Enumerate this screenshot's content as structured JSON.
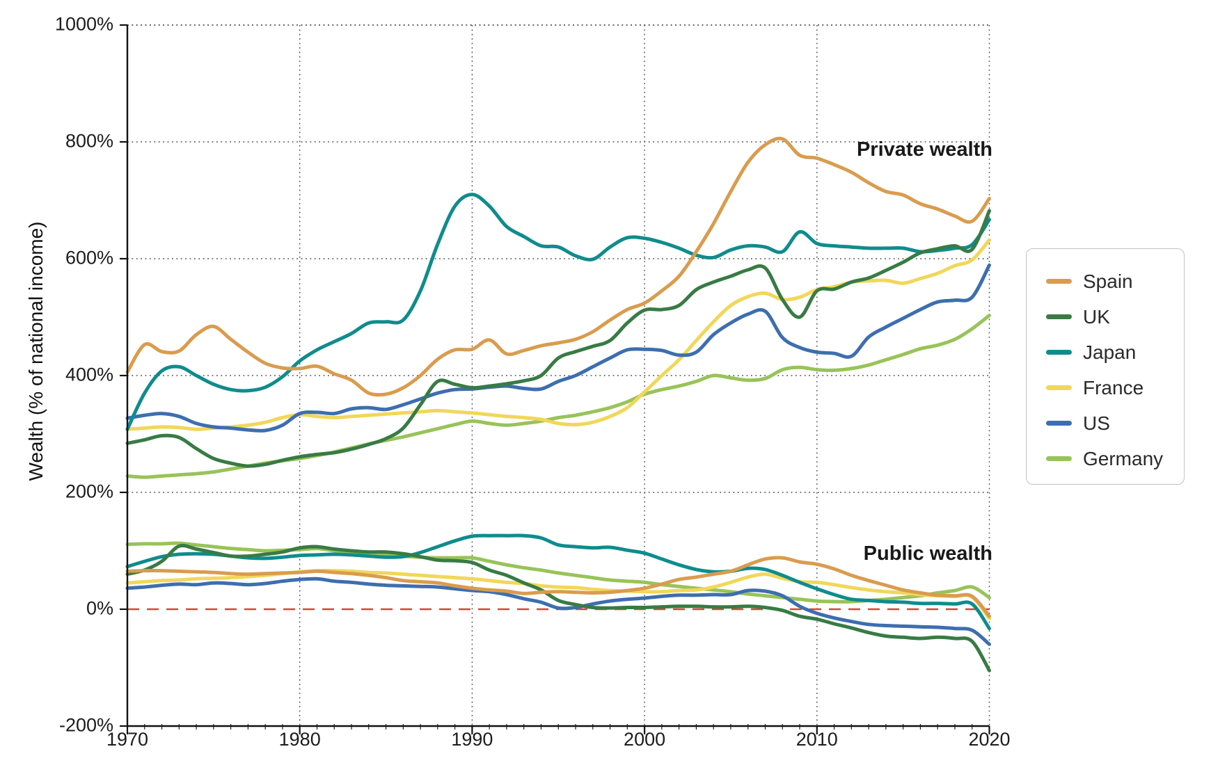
{
  "chart_data": {
    "type": "line",
    "title": "",
    "ylabel": "Wealth (% of national income)",
    "xlabel": "",
    "xlim": [
      1970,
      2020
    ],
    "ylim": [
      -200,
      1000
    ],
    "grid": "dotted",
    "legend_position": "right",
    "annotations": {
      "private": "Private wealth",
      "public": "Public wealth"
    },
    "zero_line": {
      "value": 0,
      "color": "#D9453F",
      "style": "dashed"
    },
    "x_ticks": [
      1970,
      1980,
      1990,
      2000,
      2010,
      2020
    ],
    "x_gridlines": [
      1980,
      1990,
      2000,
      2010,
      2020
    ],
    "y_gridlines": [
      1000,
      800,
      600,
      400,
      200
    ],
    "y_ticks": [
      {
        "value": 1000,
        "label": "1000%"
      },
      {
        "value": 800,
        "label": "800%"
      },
      {
        "value": 600,
        "label": "600%"
      },
      {
        "value": 400,
        "label": "400%"
      },
      {
        "value": 200,
        "label": "200%"
      },
      {
        "value": 0,
        "label": "0%"
      },
      {
        "value": -200,
        "label": "-200%"
      }
    ],
    "years": [
      1970,
      1971,
      1972,
      1973,
      1974,
      1975,
      1976,
      1977,
      1978,
      1979,
      1980,
      1981,
      1982,
      1983,
      1984,
      1985,
      1986,
      1987,
      1988,
      1989,
      1990,
      1991,
      1992,
      1993,
      1994,
      1995,
      1996,
      1997,
      1998,
      1999,
      2000,
      2001,
      2002,
      2003,
      2004,
      2005,
      2006,
      2007,
      2008,
      2009,
      2010,
      2011,
      2012,
      2013,
      2014,
      2015,
      2016,
      2017,
      2018,
      2019,
      2020
    ],
    "series": [
      {
        "name": "Spain",
        "color": "#D99C4E",
        "private": [
          406,
          453,
          441,
          442,
          470,
          484,
          462,
          440,
          421,
          413,
          412,
          416,
          403,
          392,
          370,
          368,
          379,
          400,
          428,
          444,
          445,
          461,
          437,
          443,
          451,
          456,
          462,
          475,
          495,
          513,
          524,
          545,
          570,
          612,
          660,
          715,
          765,
          795,
          805,
          777,
          772,
          761,
          748,
          730,
          715,
          709,
          694,
          685,
          673,
          664,
          703
        ],
        "public": [
          65,
          66,
          66,
          65,
          64,
          63,
          61,
          60,
          61,
          62,
          63,
          65,
          63,
          61,
          58,
          54,
          49,
          47,
          45,
          40,
          36,
          33,
          31,
          27,
          29,
          30,
          29,
          28,
          29,
          32,
          36,
          43,
          51,
          55,
          60,
          65,
          76,
          86,
          88,
          81,
          77,
          69,
          58,
          49,
          41,
          33,
          28,
          24,
          23,
          22,
          -12
        ]
      },
      {
        "name": "UK",
        "color": "#387B44",
        "private": [
          284,
          290,
          297,
          294,
          275,
          258,
          250,
          245,
          248,
          255,
          261,
          265,
          268,
          274,
          282,
          292,
          310,
          350,
          390,
          385,
          379,
          382,
          386,
          391,
          400,
          430,
          441,
          450,
          460,
          490,
          512,
          513,
          520,
          547,
          560,
          570,
          581,
          584,
          530,
          500,
          545,
          548,
          560,
          567,
          580,
          594,
          610,
          617,
          622,
          616,
          682
        ],
        "public": [
          60,
          67,
          82,
          108,
          103,
          97,
          91,
          91,
          94,
          98,
          105,
          107,
          103,
          100,
          98,
          98,
          95,
          90,
          84,
          83,
          80,
          67,
          58,
          45,
          33,
          15,
          8,
          3,
          2,
          3,
          3,
          4,
          5,
          5,
          4,
          4,
          5,
          3,
          -2,
          -12,
          -17,
          -25,
          -32,
          -40,
          -46,
          -48,
          -50,
          -48,
          -50,
          -55,
          -105
        ]
      },
      {
        "name": "Japan",
        "color": "#0F8C8D",
        "private": [
          308,
          370,
          408,
          415,
          400,
          385,
          376,
          374,
          380,
          398,
          425,
          444,
          458,
          472,
          490,
          492,
          495,
          545,
          625,
          690,
          710,
          690,
          655,
          638,
          622,
          620,
          605,
          599,
          620,
          636,
          635,
          628,
          618,
          606,
          602,
          615,
          622,
          620,
          612,
          646,
          626,
          622,
          620,
          618,
          618,
          618,
          612,
          614,
          618,
          624,
          667
        ],
        "public": [
          73,
          82,
          90,
          94,
          95,
          94,
          91,
          88,
          87,
          89,
          92,
          93,
          94,
          93,
          91,
          89,
          90,
          97,
          107,
          117,
          125,
          126,
          126,
          126,
          122,
          110,
          107,
          105,
          106,
          101,
          96,
          86,
          76,
          68,
          64,
          65,
          70,
          68,
          58,
          46,
          35,
          25,
          17,
          15,
          13,
          12,
          10,
          10,
          9,
          9,
          -33
        ]
      },
      {
        "name": "France",
        "color": "#F1D75A",
        "private": [
          308,
          310,
          312,
          311,
          308,
          310,
          312,
          315,
          320,
          328,
          333,
          330,
          328,
          330,
          332,
          334,
          336,
          338,
          340,
          338,
          336,
          333,
          330,
          328,
          325,
          318,
          316,
          320,
          330,
          345,
          372,
          400,
          427,
          460,
          492,
          520,
          535,
          541,
          530,
          534,
          547,
          552,
          560,
          562,
          563,
          558,
          566,
          575,
          588,
          598,
          632
        ],
        "public": [
          45,
          47,
          49,
          50,
          52,
          53,
          54,
          56,
          58,
          61,
          64,
          66,
          66,
          65,
          63,
          62,
          60,
          58,
          56,
          54,
          52,
          49,
          46,
          44,
          40,
          38,
          37,
          34,
          32,
          31,
          30,
          30,
          32,
          33,
          38,
          46,
          55,
          60,
          53,
          47,
          46,
          42,
          37,
          33,
          30,
          28,
          25,
          23,
          22,
          21,
          -16
        ]
      },
      {
        "name": "US",
        "color": "#3D6EAF",
        "private": [
          327,
          332,
          335,
          330,
          318,
          312,
          310,
          307,
          306,
          315,
          335,
          337,
          335,
          343,
          345,
          342,
          350,
          360,
          370,
          376,
          377,
          380,
          382,
          378,
          377,
          390,
          400,
          415,
          430,
          444,
          445,
          443,
          435,
          440,
          470,
          490,
          505,
          510,
          465,
          448,
          440,
          438,
          433,
          466,
          483,
          498,
          513,
          526,
          529,
          534,
          589
        ],
        "public": [
          36,
          38,
          41,
          43,
          42,
          45,
          44,
          42,
          44,
          48,
          51,
          52,
          48,
          46,
          43,
          41,
          40,
          39,
          38,
          35,
          32,
          30,
          25,
          18,
          12,
          2,
          3,
          9,
          14,
          17,
          19,
          22,
          24,
          24,
          25,
          25,
          32,
          31,
          23,
          5,
          -7,
          -15,
          -21,
          -26,
          -28,
          -29,
          -30,
          -31,
          -33,
          -36,
          -60
        ]
      },
      {
        "name": "Germany",
        "color": "#98C359",
        "private": [
          228,
          226,
          228,
          230,
          232,
          235,
          240,
          245,
          250,
          254,
          258,
          263,
          269,
          276,
          283,
          289,
          295,
          302,
          309,
          316,
          322,
          318,
          315,
          318,
          322,
          328,
          332,
          338,
          345,
          355,
          368,
          376,
          382,
          390,
          400,
          396,
          392,
          395,
          410,
          414,
          410,
          409,
          412,
          418,
          427,
          436,
          446,
          452,
          462,
          480,
          503
        ],
        "public": [
          111,
          112,
          112,
          113,
          110,
          107,
          104,
          102,
          100,
          101,
          102,
          104,
          100,
          97,
          95,
          94,
          91,
          89,
          88,
          88,
          88,
          82,
          76,
          71,
          67,
          62,
          58,
          54,
          50,
          48,
          46,
          42,
          39,
          36,
          33,
          30,
          26,
          23,
          20,
          17,
          14,
          13,
          13,
          15,
          17,
          20,
          23,
          28,
          32,
          38,
          20
        ]
      }
    ]
  }
}
